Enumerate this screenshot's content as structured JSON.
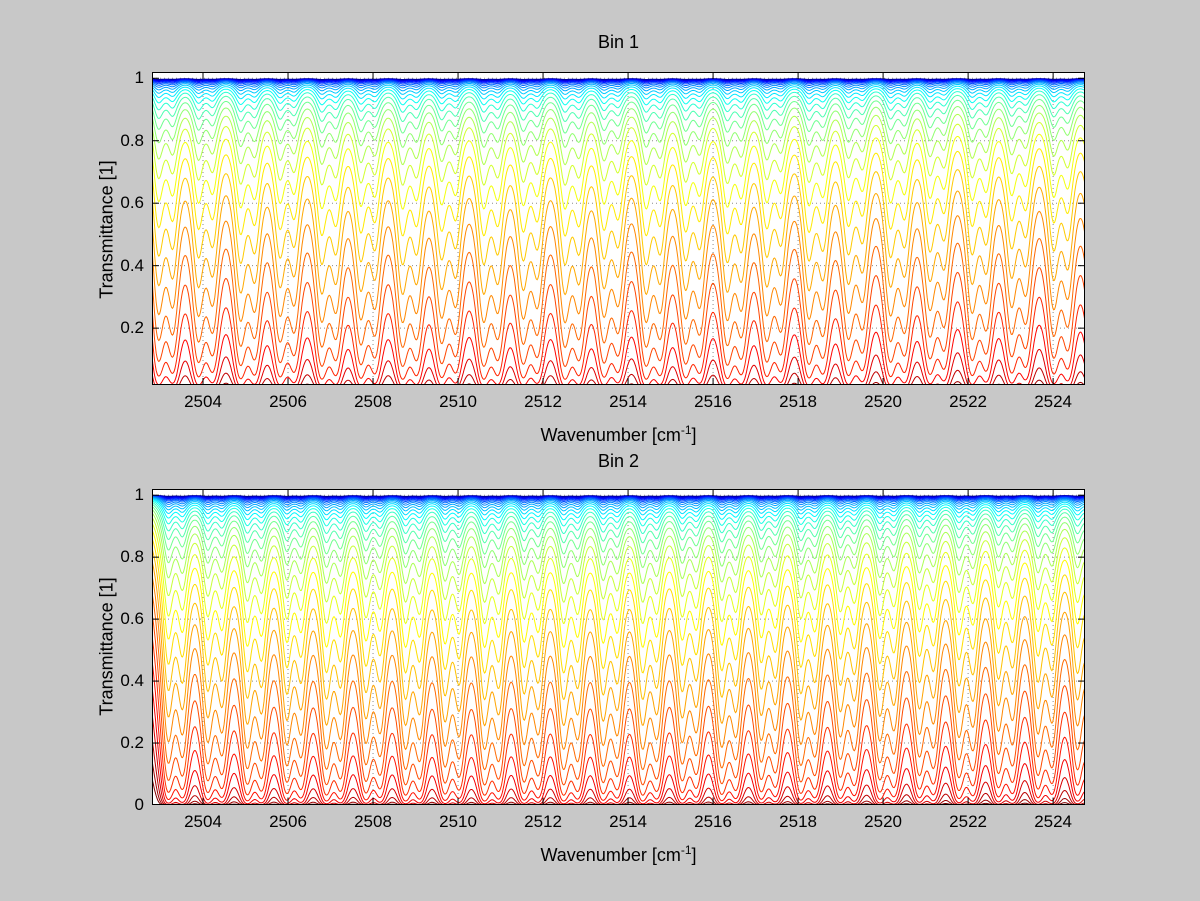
{
  "figure": {
    "background": "#c8c8c8",
    "axes_background": "#ffffff",
    "grid_color": "#8a8a8a"
  },
  "chart_data": [
    {
      "type": "line",
      "title": "Bin 1",
      "xlabel_prefix": "Wavenumber [cm",
      "xlabel_exponent": "-1",
      "xlabel_suffix": "]",
      "ylabel": "Transmittance [1]",
      "xlim": [
        2502.8,
        2524.75
      ],
      "ylim": [
        0.018,
        1.02
      ],
      "x_ticks": [
        2504,
        2506,
        2508,
        2510,
        2512,
        2514,
        2516,
        2518,
        2520,
        2522,
        2524
      ],
      "x_tick_labels": [
        "2504",
        "2506",
        "2508",
        "2510",
        "2512",
        "2514",
        "2516",
        "2518",
        "2520",
        "2522",
        "2524"
      ],
      "y_ticks": [
        0.2,
        0.4,
        0.6,
        0.8,
        1
      ],
      "y_tick_labels": [
        "0.2",
        "0.4",
        "0.6",
        "0.8",
        "1"
      ],
      "grid": true,
      "colormap": "jet",
      "series_note": "32 transmittance spectra T=exp(-s*A(v)) for geometrically increasing absorber amounts s; periodic ro-vibrational absorption doublets; color from blue (weak, near T=1) through yellow/orange to dark red (strongest, flat near 0).",
      "spectral_lines": {
        "centers": [
          2503.12,
          2504.06,
          2505.05,
          2505.98,
          2506.96,
          2507.88,
          2508.86,
          2509.78,
          2510.77,
          2511.7,
          2512.68,
          2513.6,
          2514.59,
          2515.52,
          2516.5,
          2517.43,
          2518.42,
          2519.35,
          2520.34,
          2521.27,
          2522.26,
          2523.19,
          2524.18,
          2525.11
        ],
        "strengths": [
          1.0,
          0.95,
          1.0,
          0.93,
          1.0,
          0.96,
          1.0,
          0.94,
          1.0,
          0.95,
          1.0,
          0.93,
          1.0,
          0.95,
          0.98,
          0.92,
          0.97,
          0.9,
          0.94,
          0.88,
          0.92,
          0.86,
          0.9,
          0.85
        ],
        "width": 0.16,
        "doublet_offset": 0.17,
        "doublet_ratio": 0.85,
        "continuum": 0.02
      },
      "curve_scales": [
        0.004,
        0.0052,
        0.0067,
        0.0087,
        0.0113,
        0.0146,
        0.0189,
        0.0244,
        0.0316,
        0.041,
        0.0531,
        0.0687,
        0.089,
        0.1152,
        0.1492,
        0.1932,
        0.2502,
        0.324,
        0.4196,
        0.5433,
        0.7036,
        0.9112,
        1.18,
        1.528,
        1.979,
        2.562,
        3.318,
        4.297,
        5.565,
        7.206,
        9.332,
        12.08
      ]
    },
    {
      "type": "line",
      "title": "Bin 2",
      "xlabel_prefix": "Wavenumber [cm",
      "xlabel_exponent": "-1",
      "xlabel_suffix": "]",
      "ylabel": "Transmittance [1]",
      "xlim": [
        2502.8,
        2524.75
      ],
      "ylim": [
        0,
        1.02
      ],
      "x_ticks": [
        2504,
        2506,
        2508,
        2510,
        2512,
        2514,
        2516,
        2518,
        2520,
        2522,
        2524
      ],
      "x_tick_labels": [
        "2504",
        "2506",
        "2508",
        "2510",
        "2512",
        "2514",
        "2516",
        "2518",
        "2520",
        "2522",
        "2524"
      ],
      "y_ticks": [
        0,
        0.2,
        0.4,
        0.6,
        0.8,
        1
      ],
      "y_tick_labels": [
        "0",
        "0.2",
        "0.4",
        "0.6",
        "0.8",
        "1"
      ],
      "grid": true,
      "colormap": "jet",
      "series_note": "36 transmittance spectra T=exp(-s*A(v)) for geometrically increasing absorber amounts s; line strengths taper toward higher wavenumbers; color from blue (weak, near T=1) through yellow/orange to dark red (strongest, flat near 0).",
      "spectral_lines": {
        "centers": [
          2503.35,
          2504.28,
          2505.21,
          2506.14,
          2507.07,
          2508.0,
          2508.93,
          2509.86,
          2510.79,
          2511.72,
          2512.65,
          2513.58,
          2514.51,
          2515.44,
          2516.37,
          2517.3,
          2518.23,
          2519.16,
          2520.09,
          2521.02,
          2521.95,
          2522.88,
          2523.81,
          2524.74
        ],
        "strengths": [
          1.0,
          0.94,
          1.0,
          0.95,
          1.0,
          0.93,
          1.0,
          0.96,
          1.0,
          0.94,
          1.0,
          0.95,
          1.0,
          0.92,
          0.98,
          0.9,
          0.95,
          0.87,
          0.92,
          0.85,
          0.89,
          0.83,
          0.87,
          0.82
        ],
        "width": 0.15,
        "doublet_offset": 0.17,
        "doublet_ratio": 0.85,
        "continuum": 0.02
      },
      "curve_scales": [
        0.004,
        0.005,
        0.0064,
        0.008,
        0.0102,
        0.0128,
        0.0162,
        0.0205,
        0.0258,
        0.0326,
        0.0412,
        0.052,
        0.0657,
        0.0829,
        0.1047,
        0.1322,
        0.1669,
        0.2107,
        0.266,
        0.3359,
        0.4241,
        0.5354,
        0.676,
        0.8535,
        1.078,
        1.361,
        1.718,
        2.169,
        2.738,
        3.457,
        4.365,
        5.511,
        6.959,
        8.786,
        11.09,
        14.0
      ]
    }
  ]
}
